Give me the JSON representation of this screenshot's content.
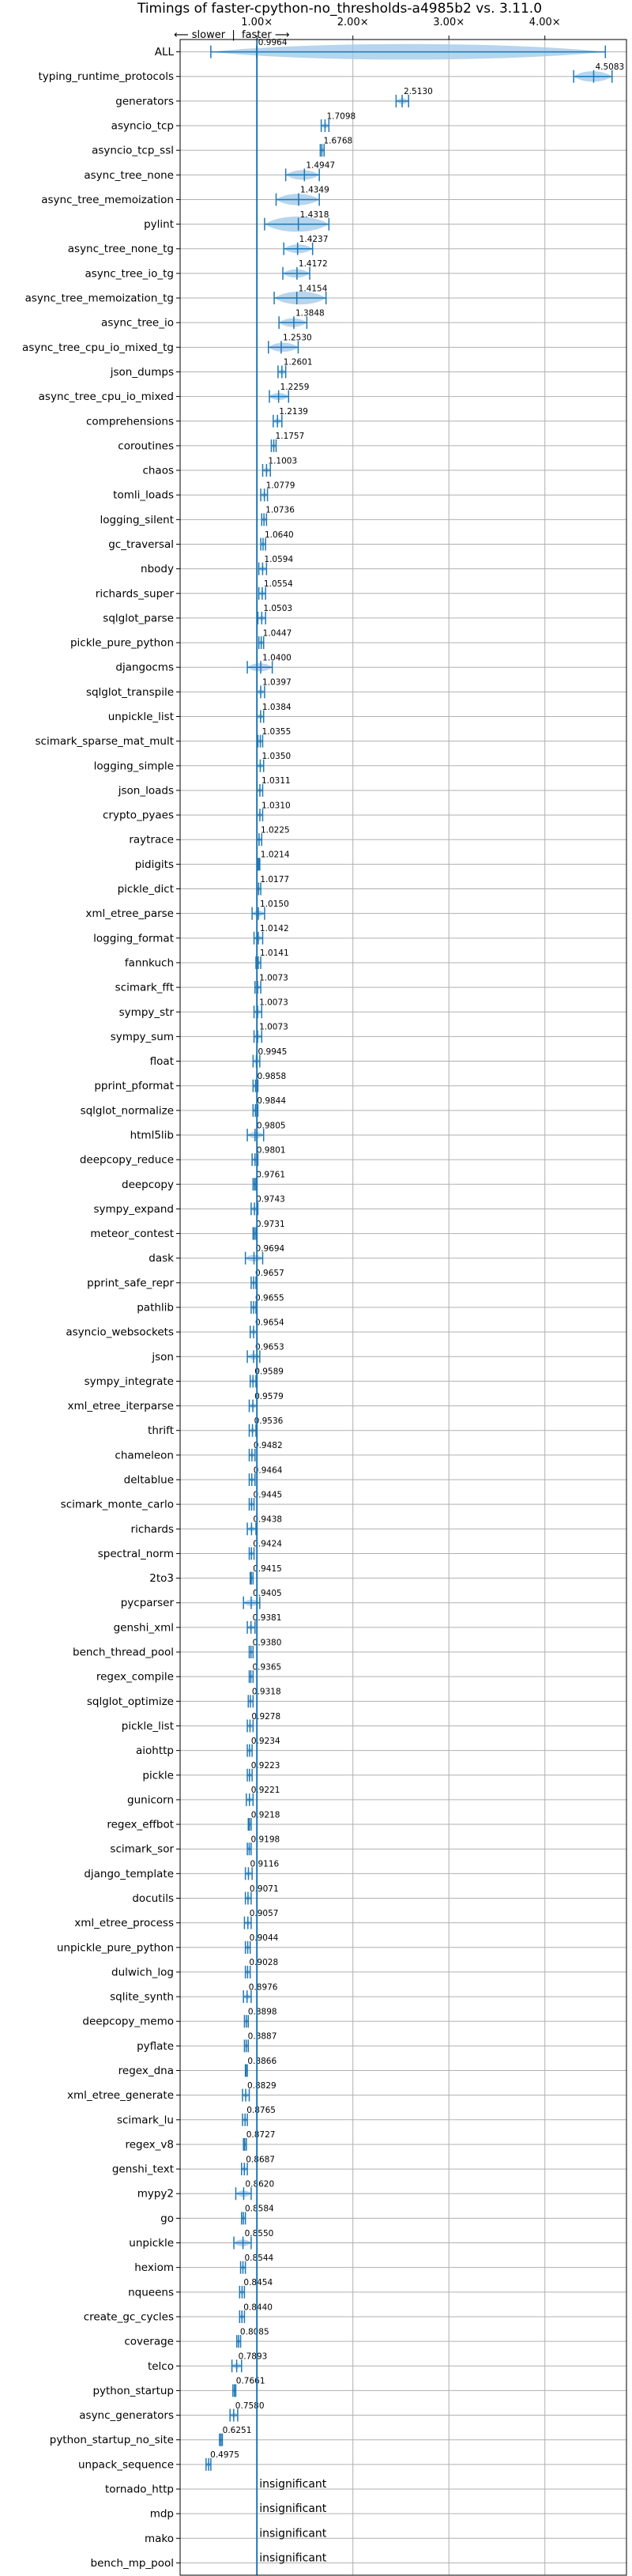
{
  "chart_data": {
    "type": "violin",
    "title": "Timings of faster-cpython-no_thresholds-a4985b2 vs. 3.11.0",
    "direction_label": "⟵ slower  |  faster ⟶",
    "x_ticks": [
      {
        "value": 1.0,
        "label": "1.00×"
      },
      {
        "value": 2.0,
        "label": "2.00×"
      },
      {
        "value": 3.0,
        "label": "3.00×"
      },
      {
        "value": 4.0,
        "label": "4.00×"
      }
    ],
    "xlim": [
      0.2,
      4.85
    ],
    "grid": true,
    "insignificant_label": "insignificant",
    "benchmarks": [
      {
        "name": "ALL",
        "value": 0.9964,
        "lo": 0.52,
        "hi": 4.63
      },
      {
        "name": "typing_runtime_protocols",
        "value": 4.5083,
        "lo": 4.3,
        "hi": 4.7
      },
      {
        "name": "generators",
        "value": 2.513,
        "lo": 2.45,
        "hi": 2.58
      },
      {
        "name": "asyncio_tcp",
        "value": 1.7098,
        "lo": 1.67,
        "hi": 1.75
      },
      {
        "name": "asyncio_tcp_ssl",
        "value": 1.6768,
        "lo": 1.66,
        "hi": 1.7
      },
      {
        "name": "async_tree_none",
        "value": 1.4947,
        "lo": 1.3,
        "hi": 1.65
      },
      {
        "name": "async_tree_memoization",
        "value": 1.4349,
        "lo": 1.2,
        "hi": 1.65
      },
      {
        "name": "pylint",
        "value": 1.4318,
        "lo": 1.08,
        "hi": 1.75
      },
      {
        "name": "async_tree_none_tg",
        "value": 1.4237,
        "lo": 1.28,
        "hi": 1.58
      },
      {
        "name": "async_tree_io_tg",
        "value": 1.4172,
        "lo": 1.27,
        "hi": 1.55
      },
      {
        "name": "async_tree_memoization_tg",
        "value": 1.4154,
        "lo": 1.18,
        "hi": 1.72
      },
      {
        "name": "async_tree_io",
        "value": 1.3848,
        "lo": 1.23,
        "hi": 1.52
      },
      {
        "name": "async_tree_cpu_io_mixed_tg",
        "value": 1.253,
        "lo": 1.12,
        "hi": 1.43
      },
      {
        "name": "json_dumps",
        "value": 1.2601,
        "lo": 1.22,
        "hi": 1.3
      },
      {
        "name": "async_tree_cpu_io_mixed",
        "value": 1.2259,
        "lo": 1.13,
        "hi": 1.33
      },
      {
        "name": "comprehensions",
        "value": 1.2139,
        "lo": 1.17,
        "hi": 1.26
      },
      {
        "name": "coroutines",
        "value": 1.1757,
        "lo": 1.15,
        "hi": 1.2
      },
      {
        "name": "chaos",
        "value": 1.1003,
        "lo": 1.06,
        "hi": 1.14
      },
      {
        "name": "tomli_loads",
        "value": 1.0779,
        "lo": 1.04,
        "hi": 1.11
      },
      {
        "name": "logging_silent",
        "value": 1.0736,
        "lo": 1.05,
        "hi": 1.1
      },
      {
        "name": "gc_traversal",
        "value": 1.064,
        "lo": 1.04,
        "hi": 1.09
      },
      {
        "name": "nbody",
        "value": 1.0594,
        "lo": 1.02,
        "hi": 1.1
      },
      {
        "name": "richards_super",
        "value": 1.0554,
        "lo": 1.02,
        "hi": 1.09
      },
      {
        "name": "sqlglot_parse",
        "value": 1.0503,
        "lo": 1.01,
        "hi": 1.09
      },
      {
        "name": "pickle_pure_python",
        "value": 1.0447,
        "lo": 1.02,
        "hi": 1.07
      },
      {
        "name": "djangocms",
        "value": 1.04,
        "lo": 0.9,
        "hi": 1.16
      },
      {
        "name": "sqlglot_transpile",
        "value": 1.0397,
        "lo": 1.0,
        "hi": 1.08
      },
      {
        "name": "unpickle_list",
        "value": 1.0384,
        "lo": 1.0,
        "hi": 1.07
      },
      {
        "name": "scimark_sparse_mat_mult",
        "value": 1.0355,
        "lo": 1.01,
        "hi": 1.06
      },
      {
        "name": "logging_simple",
        "value": 1.035,
        "lo": 1.0,
        "hi": 1.07
      },
      {
        "name": "json_loads",
        "value": 1.0311,
        "lo": 1.0,
        "hi": 1.06
      },
      {
        "name": "crypto_pyaes",
        "value": 1.031,
        "lo": 1.0,
        "hi": 1.06
      },
      {
        "name": "raytrace",
        "value": 1.0225,
        "lo": 1.0,
        "hi": 1.05
      },
      {
        "name": "pidigits",
        "value": 1.0214,
        "lo": 1.01,
        "hi": 1.03
      },
      {
        "name": "pickle_dict",
        "value": 1.0177,
        "lo": 1.0,
        "hi": 1.04
      },
      {
        "name": "xml_etree_parse",
        "value": 1.015,
        "lo": 0.95,
        "hi": 1.08
      },
      {
        "name": "logging_format",
        "value": 1.0142,
        "lo": 0.97,
        "hi": 1.06
      },
      {
        "name": "fannkuch",
        "value": 1.0141,
        "lo": 0.99,
        "hi": 1.04
      },
      {
        "name": "scimark_fft",
        "value": 1.0073,
        "lo": 0.98,
        "hi": 1.04
      },
      {
        "name": "sympy_str",
        "value": 1.0073,
        "lo": 0.97,
        "hi": 1.05
      },
      {
        "name": "sympy_sum",
        "value": 1.0073,
        "lo": 0.97,
        "hi": 1.05
      },
      {
        "name": "float",
        "value": 0.9945,
        "lo": 0.96,
        "hi": 1.03
      },
      {
        "name": "pprint_pformat",
        "value": 0.9858,
        "lo": 0.96,
        "hi": 1.01
      },
      {
        "name": "sqlglot_normalize",
        "value": 0.9844,
        "lo": 0.96,
        "hi": 1.01
      },
      {
        "name": "html5lib",
        "value": 0.9805,
        "lo": 0.9,
        "hi": 1.07
      },
      {
        "name": "deepcopy_reduce",
        "value": 0.9801,
        "lo": 0.95,
        "hi": 1.01
      },
      {
        "name": "deepcopy",
        "value": 0.9761,
        "lo": 0.96,
        "hi": 0.99
      },
      {
        "name": "sympy_expand",
        "value": 0.9743,
        "lo": 0.94,
        "hi": 1.01
      },
      {
        "name": "meteor_contest",
        "value": 0.9731,
        "lo": 0.96,
        "hi": 0.99
      },
      {
        "name": "dask",
        "value": 0.9694,
        "lo": 0.88,
        "hi": 1.06
      },
      {
        "name": "pprint_safe_repr",
        "value": 0.9657,
        "lo": 0.94,
        "hi": 0.99
      },
      {
        "name": "pathlib",
        "value": 0.9655,
        "lo": 0.94,
        "hi": 0.99
      },
      {
        "name": "asyncio_websockets",
        "value": 0.9654,
        "lo": 0.93,
        "hi": 1.0
      },
      {
        "name": "json",
        "value": 0.9653,
        "lo": 0.9,
        "hi": 1.03
      },
      {
        "name": "sympy_integrate",
        "value": 0.9589,
        "lo": 0.93,
        "hi": 0.99
      },
      {
        "name": "xml_etree_iterparse",
        "value": 0.9579,
        "lo": 0.92,
        "hi": 1.0
      },
      {
        "name": "thrift",
        "value": 0.9536,
        "lo": 0.92,
        "hi": 0.99
      },
      {
        "name": "chameleon",
        "value": 0.9482,
        "lo": 0.92,
        "hi": 0.98
      },
      {
        "name": "deltablue",
        "value": 0.9464,
        "lo": 0.92,
        "hi": 0.98
      },
      {
        "name": "scimark_monte_carlo",
        "value": 0.9445,
        "lo": 0.92,
        "hi": 0.97
      },
      {
        "name": "richards",
        "value": 0.9438,
        "lo": 0.9,
        "hi": 0.99
      },
      {
        "name": "spectral_norm",
        "value": 0.9424,
        "lo": 0.92,
        "hi": 0.97
      },
      {
        "name": "2to3",
        "value": 0.9415,
        "lo": 0.93,
        "hi": 0.96
      },
      {
        "name": "pycparser",
        "value": 0.9405,
        "lo": 0.86,
        "hi": 1.03
      },
      {
        "name": "genshi_xml",
        "value": 0.9381,
        "lo": 0.9,
        "hi": 0.98
      },
      {
        "name": "bench_thread_pool",
        "value": 0.938,
        "lo": 0.92,
        "hi": 0.96
      },
      {
        "name": "regex_compile",
        "value": 0.9365,
        "lo": 0.92,
        "hi": 0.96
      },
      {
        "name": "sqlglot_optimize",
        "value": 0.9318,
        "lo": 0.91,
        "hi": 0.96
      },
      {
        "name": "pickle_list",
        "value": 0.9278,
        "lo": 0.9,
        "hi": 0.96
      },
      {
        "name": "aiohttp",
        "value": 0.9234,
        "lo": 0.9,
        "hi": 0.95
      },
      {
        "name": "pickle",
        "value": 0.9223,
        "lo": 0.9,
        "hi": 0.95
      },
      {
        "name": "gunicorn",
        "value": 0.9221,
        "lo": 0.89,
        "hi": 0.96
      },
      {
        "name": "regex_effbot",
        "value": 0.9218,
        "lo": 0.91,
        "hi": 0.94
      },
      {
        "name": "scimark_sor",
        "value": 0.9198,
        "lo": 0.9,
        "hi": 0.94
      },
      {
        "name": "django_template",
        "value": 0.9116,
        "lo": 0.88,
        "hi": 0.95
      },
      {
        "name": "docutils",
        "value": 0.9071,
        "lo": 0.88,
        "hi": 0.94
      },
      {
        "name": "xml_etree_process",
        "value": 0.9057,
        "lo": 0.87,
        "hi": 0.94
      },
      {
        "name": "unpickle_pure_python",
        "value": 0.9044,
        "lo": 0.88,
        "hi": 0.93
      },
      {
        "name": "dulwich_log",
        "value": 0.9028,
        "lo": 0.88,
        "hi": 0.93
      },
      {
        "name": "sqlite_synth",
        "value": 0.8976,
        "lo": 0.86,
        "hi": 0.94
      },
      {
        "name": "deepcopy_memo",
        "value": 0.8898,
        "lo": 0.87,
        "hi": 0.91
      },
      {
        "name": "pyflate",
        "value": 0.8887,
        "lo": 0.87,
        "hi": 0.91
      },
      {
        "name": "regex_dna",
        "value": 0.8866,
        "lo": 0.88,
        "hi": 0.9
      },
      {
        "name": "xml_etree_generate",
        "value": 0.8829,
        "lo": 0.85,
        "hi": 0.92
      },
      {
        "name": "scimark_lu",
        "value": 0.8765,
        "lo": 0.85,
        "hi": 0.9
      },
      {
        "name": "regex_v8",
        "value": 0.8727,
        "lo": 0.86,
        "hi": 0.89
      },
      {
        "name": "genshi_text",
        "value": 0.8687,
        "lo": 0.84,
        "hi": 0.9
      },
      {
        "name": "mypy2",
        "value": 0.862,
        "lo": 0.78,
        "hi": 0.94
      },
      {
        "name": "go",
        "value": 0.8584,
        "lo": 0.84,
        "hi": 0.88
      },
      {
        "name": "unpickle",
        "value": 0.855,
        "lo": 0.76,
        "hi": 0.94
      },
      {
        "name": "hexiom",
        "value": 0.8544,
        "lo": 0.83,
        "hi": 0.88
      },
      {
        "name": "nqueens",
        "value": 0.8454,
        "lo": 0.82,
        "hi": 0.87
      },
      {
        "name": "create_gc_cycles",
        "value": 0.844,
        "lo": 0.82,
        "hi": 0.87
      },
      {
        "name": "coverage",
        "value": 0.8085,
        "lo": 0.79,
        "hi": 0.83
      },
      {
        "name": "telco",
        "value": 0.7893,
        "lo": 0.74,
        "hi": 0.84
      },
      {
        "name": "python_startup",
        "value": 0.7661,
        "lo": 0.75,
        "hi": 0.78
      },
      {
        "name": "async_generators",
        "value": 0.758,
        "lo": 0.72,
        "hi": 0.8
      },
      {
        "name": "python_startup_no_site",
        "value": 0.6251,
        "lo": 0.61,
        "hi": 0.64
      },
      {
        "name": "unpack_sequence",
        "value": 0.4975,
        "lo": 0.47,
        "hi": 0.52
      },
      {
        "name": "tornado_http",
        "value": null
      },
      {
        "name": "mdp",
        "value": null
      },
      {
        "name": "mako",
        "value": null
      },
      {
        "name": "bench_mp_pool",
        "value": null
      }
    ]
  }
}
